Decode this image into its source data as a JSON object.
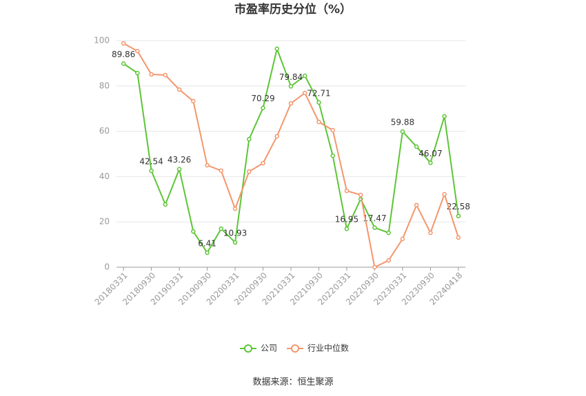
{
  "chart_data": {
    "type": "line",
    "title": "市盈率历史分位（%）",
    "source": "数据来源：恒生聚源",
    "categories": [
      "20180331",
      null,
      "20180930",
      null,
      "20190331",
      null,
      "20190930",
      null,
      "20200331",
      null,
      "20200930",
      null,
      "20210331",
      null,
      "20210930",
      null,
      "20220331",
      null,
      "20220930",
      null,
      "20230331",
      null,
      "20230930",
      null,
      "20240418"
    ],
    "series": [
      {
        "name": "公司",
        "color": "#5cc535",
        "values": [
          89.86,
          85.7,
          42.54,
          27.7,
          43.26,
          15.8,
          6.41,
          17.0,
          10.93,
          56.5,
          70.29,
          96.4,
          79.84,
          84.5,
          72.71,
          49.2,
          16.95,
          30.1,
          17.47,
          15.2,
          59.88,
          53.2,
          46.07,
          66.6,
          22.58
        ]
      },
      {
        "name": "行业中位数",
        "color": "#f4956b",
        "values": [
          98.8,
          95.4,
          85.1,
          84.8,
          78.4,
          73.3,
          45.0,
          42.6,
          25.8,
          42.2,
          45.9,
          57.8,
          72.3,
          76.9,
          64.1,
          60.5,
          33.7,
          31.9,
          0,
          3.0,
          12.5,
          27.4,
          15.2,
          32.2,
          13.1
        ]
      }
    ],
    "ylim": [
      0,
      100
    ],
    "yticks": [
      0,
      20,
      40,
      60,
      80,
      100
    ],
    "grid": true,
    "legend": "bottom"
  }
}
